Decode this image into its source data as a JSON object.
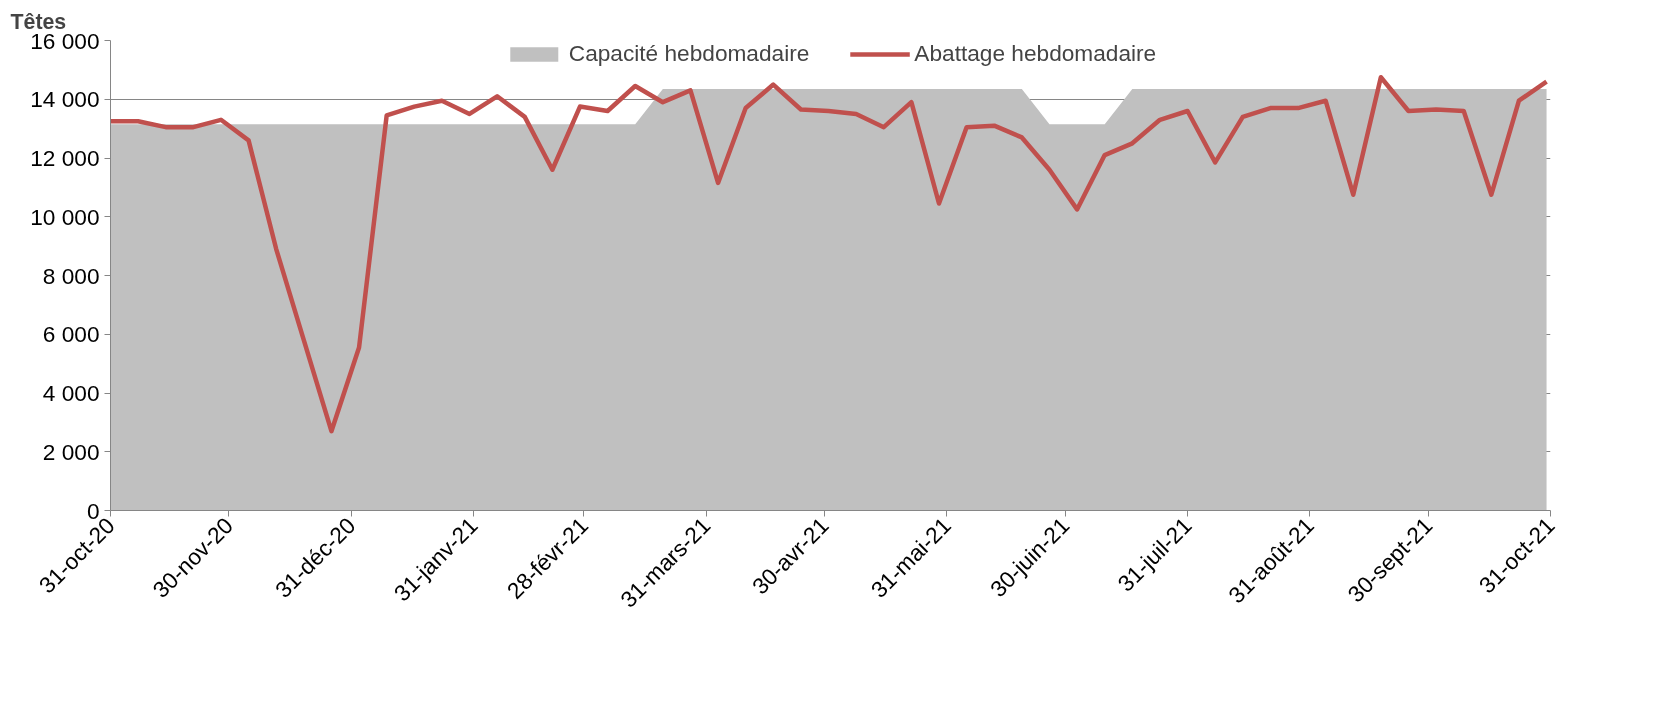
{
  "chart_data": {
    "type": "line",
    "ylabel": "Têtes",
    "x": [
      "2020-10-31",
      "2020-11-07",
      "2020-11-14",
      "2020-11-21",
      "2020-11-28",
      "2020-12-05",
      "2020-12-12",
      "2020-12-19",
      "2020-12-26",
      "2021-01-02",
      "2021-01-09",
      "2021-01-16",
      "2021-01-23",
      "2021-01-30",
      "2021-02-06",
      "2021-02-13",
      "2021-02-20",
      "2021-02-27",
      "2021-03-06",
      "2021-03-13",
      "2021-03-20",
      "2021-03-27",
      "2021-04-03",
      "2021-04-10",
      "2021-04-17",
      "2021-04-24",
      "2021-05-01",
      "2021-05-08",
      "2021-05-15",
      "2021-05-22",
      "2021-05-29",
      "2021-06-05",
      "2021-06-12",
      "2021-06-19",
      "2021-06-26",
      "2021-07-03",
      "2021-07-10",
      "2021-07-17",
      "2021-07-24",
      "2021-07-31",
      "2021-08-07",
      "2021-08-14",
      "2021-08-21",
      "2021-08-28",
      "2021-09-04",
      "2021-09-11",
      "2021-09-18",
      "2021-09-25",
      "2021-10-02",
      "2021-10-09",
      "2021-10-16",
      "2021-10-23",
      "2021-10-30"
    ],
    "series": [
      {
        "name": "Capacité hebdomadaire",
        "type": "area",
        "color": "#c0c0c0",
        "values": [
          13150,
          13150,
          13150,
          13150,
          13150,
          13150,
          13150,
          13150,
          13150,
          13150,
          13150,
          13150,
          13150,
          13150,
          13150,
          13150,
          13150,
          13150,
          13150,
          13150,
          14350,
          14350,
          14350,
          14350,
          14350,
          14350,
          14350,
          14350,
          14350,
          14350,
          14350,
          14350,
          14350,
          14350,
          13150,
          13150,
          13150,
          14350,
          14350,
          14350,
          14350,
          14350,
          14350,
          14350,
          14350,
          14350,
          14350,
          14350,
          14350,
          14350,
          14350,
          14350,
          14350
        ]
      },
      {
        "name": "Abattage hebdomadaire",
        "color": "#c0504d",
        "values": [
          13250,
          13250,
          13050,
          13050,
          13300,
          12600,
          8900,
          5800,
          2700,
          5550,
          13450,
          13750,
          13950,
          13500,
          14100,
          13400,
          11600,
          13750,
          13600,
          14450,
          13900,
          14300,
          11150,
          13700,
          14500,
          13650,
          13600,
          13500,
          13050,
          13900,
          10450,
          13050,
          13100,
          12700,
          11600,
          10250,
          12100,
          12500,
          13300,
          13600,
          11850,
          13400,
          13700,
          13700,
          13950,
          10750,
          14750,
          13600,
          13650,
          13600,
          10750,
          13950,
          14600
        ]
      }
    ],
    "xlim": [
      "2020-10-31",
      "2021-10-31"
    ],
    "xticks": [
      {
        "value": "2020-10-31",
        "label": "31-oct-20"
      },
      {
        "value": "2020-11-30",
        "label": "30-nov-20"
      },
      {
        "value": "2020-12-31",
        "label": "31-déc-20"
      },
      {
        "value": "2021-01-31",
        "label": "31-janv-21"
      },
      {
        "value": "2021-02-28",
        "label": "28-févr-21"
      },
      {
        "value": "2021-03-31",
        "label": "31-mars-21"
      },
      {
        "value": "2021-04-30",
        "label": "30-avr-21"
      },
      {
        "value": "2021-05-31",
        "label": "31-mai-21"
      },
      {
        "value": "2021-06-30",
        "label": "30-juin-21"
      },
      {
        "value": "2021-07-31",
        "label": "31-juil-21"
      },
      {
        "value": "2021-08-31",
        "label": "31-août-21"
      },
      {
        "value": "2021-09-30",
        "label": "30-sept-21"
      },
      {
        "value": "2021-10-31",
        "label": "31-oct-21"
      }
    ],
    "ylim": [
      0,
      16000
    ],
    "yticks": [
      0,
      {
        "value": 2000,
        "label": "2 000"
      },
      {
        "value": 4000,
        "label": "4 000"
      },
      {
        "value": 6000,
        "label": "6 000"
      },
      {
        "value": 8000,
        "label": "8 000"
      },
      {
        "value": 10000,
        "label": "10 000"
      },
      {
        "value": 12000,
        "label": "12 000"
      },
      {
        "value": 14000,
        "label": "14 000"
      },
      {
        "value": 16000,
        "label": "16 000"
      }
    ],
    "grid": "y",
    "legend": "top",
    "marker": "none",
    "line_style": "solid"
  }
}
